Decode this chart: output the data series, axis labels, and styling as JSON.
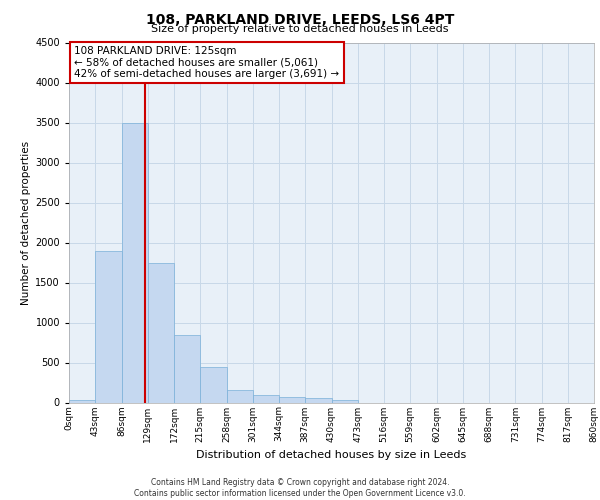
{
  "title_line1": "108, PARKLAND DRIVE, LEEDS, LS6 4PT",
  "title_line2": "Size of property relative to detached houses in Leeds",
  "xlabel": "Distribution of detached houses by size in Leeds",
  "ylabel": "Number of detached properties",
  "bin_labels": [
    "0sqm",
    "43sqm",
    "86sqm",
    "129sqm",
    "172sqm",
    "215sqm",
    "258sqm",
    "301sqm",
    "344sqm",
    "387sqm",
    "430sqm",
    "473sqm",
    "516sqm",
    "559sqm",
    "602sqm",
    "645sqm",
    "688sqm",
    "731sqm",
    "774sqm",
    "817sqm",
    "860sqm"
  ],
  "bar_values": [
    30,
    1900,
    3500,
    1750,
    850,
    450,
    155,
    95,
    75,
    55,
    30,
    0,
    0,
    0,
    0,
    0,
    0,
    0,
    0,
    0
  ],
  "bar_color": "#c5d8f0",
  "bar_edge_color": "#7ab0d8",
  "grid_color": "#c8d8e8",
  "background_color": "#e8f0f8",
  "ylim": [
    0,
    4500
  ],
  "yticks": [
    0,
    500,
    1000,
    1500,
    2000,
    2500,
    3000,
    3500,
    4000,
    4500
  ],
  "annotation_text": "108 PARKLAND DRIVE: 125sqm\n← 58% of detached houses are smaller (5,061)\n42% of semi-detached houses are larger (3,691) →",
  "annotation_box_color": "#ffffff",
  "annotation_box_edge": "#cc0000",
  "vline_color": "#cc0000",
  "footer_line1": "Contains HM Land Registry data © Crown copyright and database right 2024.",
  "footer_line2": "Contains public sector information licensed under the Open Government Licence v3.0."
}
